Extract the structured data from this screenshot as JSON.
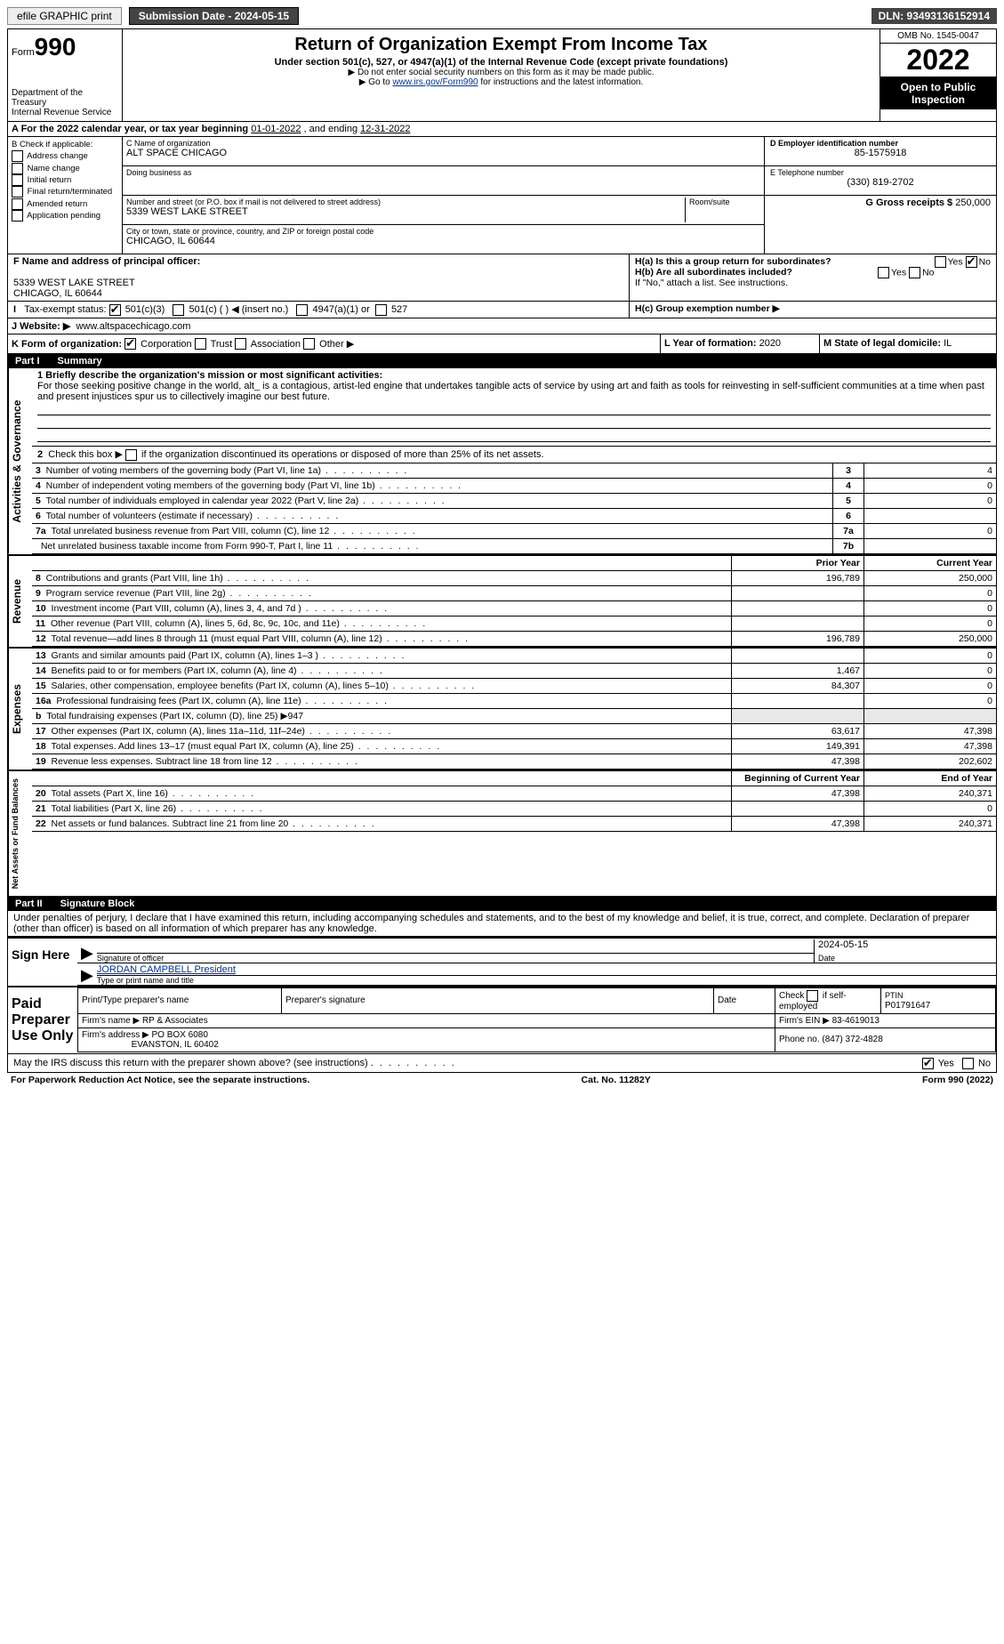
{
  "topbar": {
    "efile_label": "efile GRAPHIC print",
    "submission_label": "Submission Date - 2024-05-15",
    "dln_label": "DLN: 93493136152914"
  },
  "header": {
    "form_word": "Form",
    "form_number": "990",
    "dept1": "Department of the Treasury",
    "dept2": "Internal Revenue Service",
    "title": "Return of Organization Exempt From Income Tax",
    "subtitle1": "Under section 501(c), 527, or 4947(a)(1) of the Internal Revenue Code (except private foundations)",
    "subtitle2": "▶ Do not enter social security numbers on this form as it may be made public.",
    "subtitle3_pre": "▶ Go to ",
    "subtitle3_link": "www.irs.gov/Form990",
    "subtitle3_post": " for instructions and the latest information.",
    "omb": "OMB No. 1545-0047",
    "year": "2022",
    "open_public": "Open to Public Inspection"
  },
  "section_a": {
    "text_pre": "A For the 2022 calendar year, or tax year beginning ",
    "begin": "01-01-2022",
    "mid": "   , and ending ",
    "end": "12-31-2022"
  },
  "block_b": {
    "title": "B Check if applicable:",
    "items": [
      "Address change",
      "Name change",
      "Initial return",
      "Final return/terminated",
      "Amended return",
      "Application pending"
    ]
  },
  "block_c": {
    "name_label": "C Name of organization",
    "name": "ALT SPACE CHICAGO",
    "dba_label": "Doing business as",
    "dba": "",
    "street_label": "Number and street (or P.O. box if mail is not delivered to street address)",
    "room_label": "Room/suite",
    "street": "5339 WEST LAKE STREET",
    "city_label": "City or town, state or province, country, and ZIP or foreign postal code",
    "city": "CHICAGO, IL  60644"
  },
  "block_d": {
    "ein_label": "D Employer identification number",
    "ein": "85-1575918",
    "phone_label": "E Telephone number",
    "phone": "(330) 819-2702",
    "gross_label": "G Gross receipts $",
    "gross": "250,000"
  },
  "block_f": {
    "label": "F Name and address of principal officer:",
    "line1": "5339 WEST LAKE STREET",
    "line2": "CHICAGO, IL  60644"
  },
  "block_h": {
    "a_label": "H(a)  Is this a group return for subordinates?",
    "b_label": "H(b)  Are all subordinates included?",
    "b_note": "If \"No,\" attach a list. See instructions.",
    "c_label": "H(c)  Group exemption number ▶",
    "yes": "Yes",
    "no": "No"
  },
  "tax_exempt": {
    "label": "Tax-exempt status:",
    "opt1": "501(c)(3)",
    "opt2": "501(c) (   ) ◀ (insert no.)",
    "opt3": "4947(a)(1) or",
    "opt4": "527"
  },
  "website": {
    "label": "J    Website: ▶",
    "value": "www.altspacechicago.com"
  },
  "block_k": {
    "label": "K Form of organization:",
    "corp": "Corporation",
    "trust": "Trust",
    "assoc": "Association",
    "other": "Other ▶"
  },
  "block_l": {
    "label": "L Year of formation:",
    "value": "2020"
  },
  "block_m": {
    "label": "M State of legal domicile:",
    "value": "IL"
  },
  "part1": {
    "header_num": "Part I",
    "header_title": "Summary",
    "line1_label": "1  Briefly describe the organization's mission or most significant activities:",
    "line1_text": "For those seeking positive change in the world, alt_ is a contagious, artist-led engine that undertakes tangible acts of service by using art and faith as tools for reinvesting in self-sufficient communities at a time when past and present injustices spur us to cillectively imagine our best future.",
    "line2_label": "2   Check this box ▶        if the organization discontinued its operations or disposed of more than 25% of its net assets.",
    "sidebars": {
      "gov": "Activities & Governance",
      "rev": "Revenue",
      "exp": "Expenses",
      "net": "Net Assets or Fund Balances"
    },
    "rows_single": [
      {
        "n": "3",
        "label": "Number of voting members of the governing body (Part VI, line 1a)",
        "box": "3",
        "val": "4"
      },
      {
        "n": "4",
        "label": "Number of independent voting members of the governing body (Part VI, line 1b)",
        "box": "4",
        "val": "0"
      },
      {
        "n": "5",
        "label": "Total number of individuals employed in calendar year 2022 (Part V, line 2a)",
        "box": "5",
        "val": "0"
      },
      {
        "n": "6",
        "label": "Total number of volunteers (estimate if necessary)",
        "box": "6",
        "val": ""
      },
      {
        "n": "7a",
        "label": "Total unrelated business revenue from Part VIII, column (C), line 12",
        "box": "7a",
        "val": "0"
      },
      {
        "n": "",
        "label": "Net unrelated business taxable income from Form 990-T, Part I, line 11",
        "box": "7b",
        "val": ""
      }
    ],
    "col_head_prior": "Prior Year",
    "col_head_current": "Current Year",
    "rows_rev": [
      {
        "n": "8",
        "label": "Contributions and grants (Part VIII, line 1h)",
        "prior": "196,789",
        "cur": "250,000"
      },
      {
        "n": "9",
        "label": "Program service revenue (Part VIII, line 2g)",
        "prior": "",
        "cur": "0"
      },
      {
        "n": "10",
        "label": "Investment income (Part VIII, column (A), lines 3, 4, and 7d )",
        "prior": "",
        "cur": "0"
      },
      {
        "n": "11",
        "label": "Other revenue (Part VIII, column (A), lines 5, 6d, 8c, 9c, 10c, and 11e)",
        "prior": "",
        "cur": "0"
      },
      {
        "n": "12",
        "label": "Total revenue—add lines 8 through 11 (must equal Part VIII, column (A), line 12)",
        "prior": "196,789",
        "cur": "250,000"
      }
    ],
    "rows_exp": [
      {
        "n": "13",
        "label": "Grants and similar amounts paid (Part IX, column (A), lines 1–3 )",
        "prior": "",
        "cur": "0"
      },
      {
        "n": "14",
        "label": "Benefits paid to or for members (Part IX, column (A), line 4)",
        "prior": "1,467",
        "cur": "0"
      },
      {
        "n": "15",
        "label": "Salaries, other compensation, employee benefits (Part IX, column (A), lines 5–10)",
        "prior": "84,307",
        "cur": "0"
      },
      {
        "n": "16a",
        "label": "Professional fundraising fees (Part IX, column (A), line 11e)",
        "prior": "",
        "cur": "0"
      },
      {
        "n": "b",
        "label": "Total fundraising expenses (Part IX, column (D), line 25) ▶947",
        "prior": "—shade—",
        "cur": "—shade—"
      },
      {
        "n": "17",
        "label": "Other expenses (Part IX, column (A), lines 11a–11d, 11f–24e)",
        "prior": "63,617",
        "cur": "47,398"
      },
      {
        "n": "18",
        "label": "Total expenses. Add lines 13–17 (must equal Part IX, column (A), line 25)",
        "prior": "149,391",
        "cur": "47,398"
      },
      {
        "n": "19",
        "label": "Revenue less expenses. Subtract line 18 from line 12",
        "prior": "47,398",
        "cur": "202,602"
      }
    ],
    "col_head_begin": "Beginning of Current Year",
    "col_head_end": "End of Year",
    "rows_net": [
      {
        "n": "20",
        "label": "Total assets (Part X, line 16)",
        "prior": "47,398",
        "cur": "240,371"
      },
      {
        "n": "21",
        "label": "Total liabilities (Part X, line 26)",
        "prior": "",
        "cur": "0"
      },
      {
        "n": "22",
        "label": "Net assets or fund balances. Subtract line 21 from line 20",
        "prior": "47,398",
        "cur": "240,371"
      }
    ]
  },
  "part2": {
    "header_num": "Part II",
    "header_title": "Signature Block",
    "declaration": "Under penalties of perjury, I declare that I have examined this return, including accompanying schedules and statements, and to the best of my knowledge and belief, it is true, correct, and complete. Declaration of preparer (other than officer) is based on all information of which preparer has any knowledge.",
    "sign_here": "Sign Here",
    "sig_officer": "Signature of officer",
    "date": "Date",
    "sig_date": "2024-05-15",
    "officer_name": "JORDAN CAMPBELL  President",
    "type_name": "Type or print name and title",
    "paid_prep": "Paid Preparer Use Only",
    "print_name_label": "Print/Type preparer's name",
    "prep_sig_label": "Preparer's signature",
    "date_label": "Date",
    "check_if": "Check          if self-employed",
    "ptin_label": "PTIN",
    "ptin": "P01791647",
    "firm_name_label": "Firm's name    ▶",
    "firm_name": "RP & Associates",
    "firm_ein_label": "Firm's EIN ▶",
    "firm_ein": "83-4619013",
    "firm_addr_label": "Firm's address ▶",
    "firm_addr1": "PO BOX 6080",
    "firm_addr2": "EVANSTON, IL  60402",
    "phone_label": "Phone no.",
    "phone": "(847) 372-4828",
    "may_irs": "May the IRS discuss this return with the preparer shown above? (see instructions)",
    "yes": "Yes",
    "no": "No"
  },
  "footer": {
    "left": "For Paperwork Reduction Act Notice, see the separate instructions.",
    "mid": "Cat. No. 11282Y",
    "right_pre": "Form ",
    "right_bold": "990",
    "right_post": " (2022)"
  }
}
